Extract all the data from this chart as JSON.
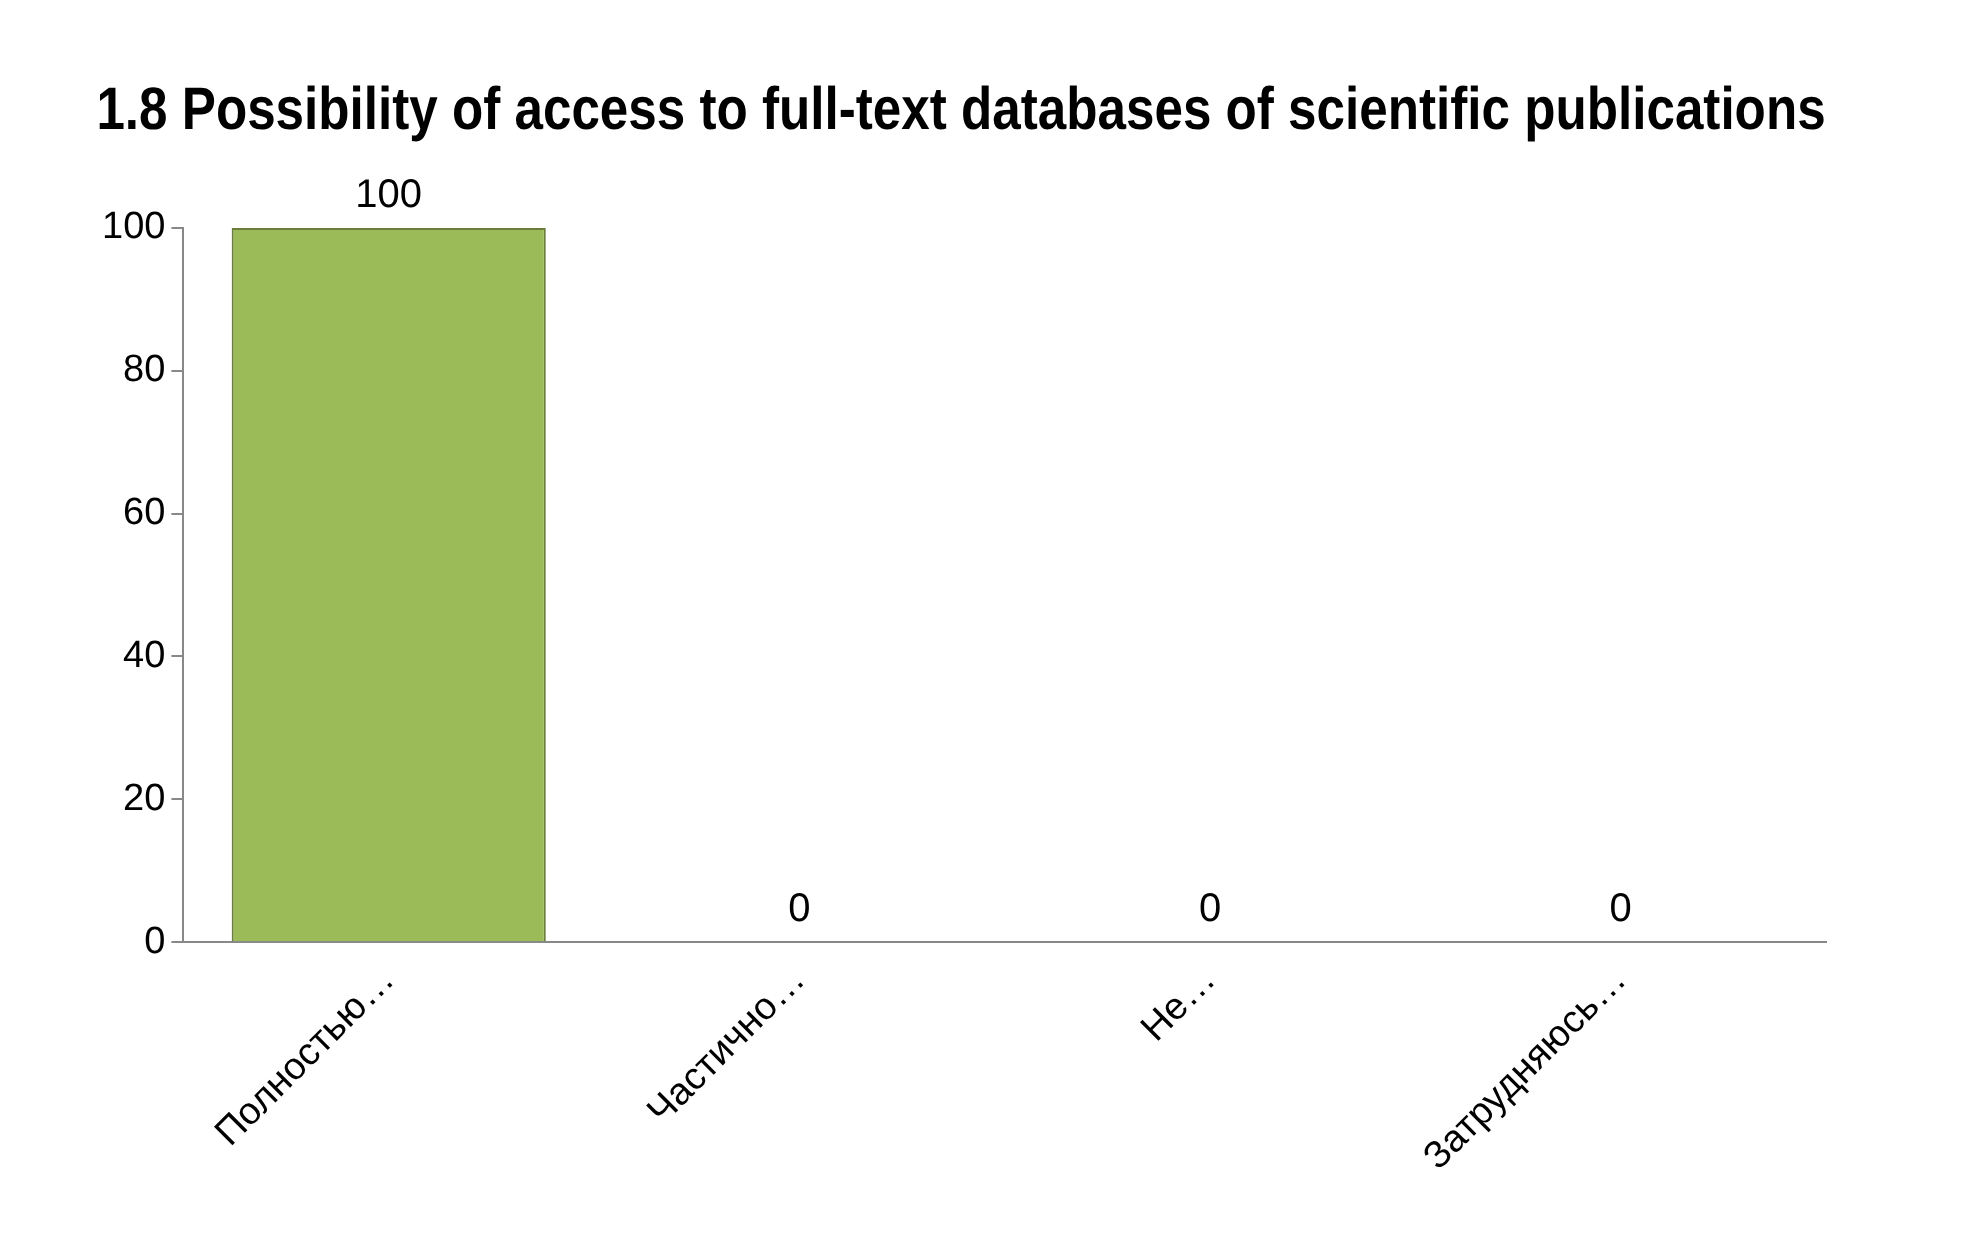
{
  "chart_data": {
    "type": "bar",
    "title": "1.8 Possibility of access to full-text databases of scientific publications",
    "categories": [
      "Полностью…",
      "Частично…",
      "Не…",
      "Затрудняюсь…"
    ],
    "values": [
      100,
      0,
      0,
      0
    ],
    "color": "#9bbb59",
    "ylim": [
      0,
      100
    ],
    "yticks": [
      0,
      20,
      40,
      60,
      80,
      100
    ],
    "grid": false,
    "legend": false,
    "data_labels": true
  }
}
